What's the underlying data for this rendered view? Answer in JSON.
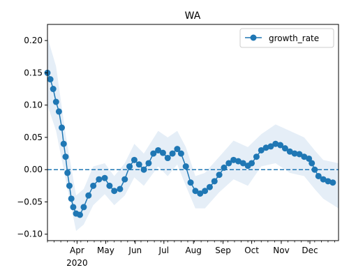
{
  "chart_data": {
    "type": "line",
    "title": "WA",
    "xlabel": "",
    "ylabel": "",
    "xlim": [
      "2020-03-01",
      "2020-12-31"
    ],
    "ylim": [
      -0.11,
      0.225
    ],
    "yticks": [
      -0.1,
      -0.05,
      0.0,
      0.05,
      0.1,
      0.15,
      0.2
    ],
    "ytick_labels": [
      "−0.10",
      "−0.05",
      "0.00",
      "0.05",
      "0.10",
      "0.15",
      "0.20"
    ],
    "xticks": [
      "2020-04-01",
      "2020-05-01",
      "2020-06-01",
      "2020-07-01",
      "2020-08-01",
      "2020-09-01",
      "2020-10-01",
      "2020-11-01",
      "2020-12-01"
    ],
    "xtick_labels": [
      "Apr",
      "May",
      "Jun",
      "Jul",
      "Aug",
      "Sep",
      "Oct",
      "Nov",
      "Dec"
    ],
    "xtick_year_label": "2020",
    "legend_position": "top-right",
    "reference_line": {
      "y": 0.0,
      "style": "dashed"
    },
    "series": [
      {
        "name": "growth_rate",
        "color": "#1f77b4",
        "band_color": "#cfe0f1",
        "points": [
          [
            "2020-03-01",
            0.15
          ],
          [
            "2020-03-04",
            0.14
          ],
          [
            "2020-03-07",
            0.125
          ],
          [
            "2020-03-10",
            0.105
          ],
          [
            "2020-03-13",
            0.09
          ],
          [
            "2020-03-16",
            0.065
          ],
          [
            "2020-03-18",
            0.04
          ],
          [
            "2020-03-20",
            0.02
          ],
          [
            "2020-03-22",
            -0.005
          ],
          [
            "2020-03-24",
            -0.025
          ],
          [
            "2020-03-26",
            -0.045
          ],
          [
            "2020-03-28",
            -0.058
          ],
          [
            "2020-03-31",
            -0.068
          ],
          [
            "2020-04-04",
            -0.07
          ],
          [
            "2020-04-08",
            -0.058
          ],
          [
            "2020-04-13",
            -0.04
          ],
          [
            "2020-04-18",
            -0.025
          ],
          [
            "2020-04-24",
            -0.015
          ],
          [
            "2020-04-30",
            -0.013
          ],
          [
            "2020-05-05",
            -0.025
          ],
          [
            "2020-05-10",
            -0.033
          ],
          [
            "2020-05-16",
            -0.03
          ],
          [
            "2020-05-21",
            -0.015
          ],
          [
            "2020-05-26",
            0.005
          ],
          [
            "2020-05-31",
            0.015
          ],
          [
            "2020-06-05",
            0.008
          ],
          [
            "2020-06-10",
            0.0
          ],
          [
            "2020-06-15",
            0.01
          ],
          [
            "2020-06-20",
            0.025
          ],
          [
            "2020-06-25",
            0.03
          ],
          [
            "2020-06-30",
            0.026
          ],
          [
            "2020-07-05",
            0.018
          ],
          [
            "2020-07-10",
            0.025
          ],
          [
            "2020-07-15",
            0.032
          ],
          [
            "2020-07-19",
            0.025
          ],
          [
            "2020-07-24",
            0.005
          ],
          [
            "2020-07-29",
            -0.02
          ],
          [
            "2020-08-03",
            -0.033
          ],
          [
            "2020-08-08",
            -0.037
          ],
          [
            "2020-08-13",
            -0.033
          ],
          [
            "2020-08-18",
            -0.027
          ],
          [
            "2020-08-23",
            -0.018
          ],
          [
            "2020-08-28",
            -0.008
          ],
          [
            "2020-09-02",
            0.003
          ],
          [
            "2020-09-07",
            0.01
          ],
          [
            "2020-09-12",
            0.015
          ],
          [
            "2020-09-17",
            0.013
          ],
          [
            "2020-09-22",
            0.01
          ],
          [
            "2020-09-27",
            0.006
          ],
          [
            "2020-10-01",
            0.01
          ],
          [
            "2020-10-06",
            0.02
          ],
          [
            "2020-10-11",
            0.03
          ],
          [
            "2020-10-16",
            0.034
          ],
          [
            "2020-10-21",
            0.036
          ],
          [
            "2020-10-26",
            0.04
          ],
          [
            "2020-10-31",
            0.038
          ],
          [
            "2020-11-05",
            0.033
          ],
          [
            "2020-11-10",
            0.028
          ],
          [
            "2020-11-15",
            0.025
          ],
          [
            "2020-11-20",
            0.024
          ],
          [
            "2020-11-25",
            0.02
          ],
          [
            "2020-11-30",
            0.017
          ],
          [
            "2020-12-03",
            0.01
          ],
          [
            "2020-12-06",
            0.0
          ],
          [
            "2020-12-10",
            -0.01
          ],
          [
            "2020-12-15",
            -0.015
          ],
          [
            "2020-12-20",
            -0.018
          ],
          [
            "2020-12-25",
            -0.02
          ]
        ],
        "band_upper": [
          [
            "2020-03-01",
            0.205
          ],
          [
            "2020-03-10",
            0.16
          ],
          [
            "2020-03-20",
            0.055
          ],
          [
            "2020-03-31",
            -0.04
          ],
          [
            "2020-04-08",
            -0.03
          ],
          [
            "2020-04-18",
            0.005
          ],
          [
            "2020-04-30",
            0.01
          ],
          [
            "2020-05-10",
            -0.01
          ],
          [
            "2020-05-21",
            0.01
          ],
          [
            "2020-05-31",
            0.04
          ],
          [
            "2020-06-10",
            0.025
          ],
          [
            "2020-06-25",
            0.06
          ],
          [
            "2020-07-05",
            0.05
          ],
          [
            "2020-07-15",
            0.06
          ],
          [
            "2020-07-24",
            0.035
          ],
          [
            "2020-08-03",
            -0.01
          ],
          [
            "2020-08-13",
            -0.005
          ],
          [
            "2020-08-28",
            0.02
          ],
          [
            "2020-09-12",
            0.045
          ],
          [
            "2020-09-27",
            0.035
          ],
          [
            "2020-10-11",
            0.055
          ],
          [
            "2020-10-26",
            0.07
          ],
          [
            "2020-11-10",
            0.06
          ],
          [
            "2020-11-25",
            0.05
          ],
          [
            "2020-12-06",
            0.03
          ],
          [
            "2020-12-15",
            0.015
          ],
          [
            "2020-12-31",
            0.01
          ]
        ],
        "band_lower": [
          [
            "2020-03-01",
            0.1
          ],
          [
            "2020-03-10",
            0.06
          ],
          [
            "2020-03-20",
            -0.015
          ],
          [
            "2020-03-31",
            -0.095
          ],
          [
            "2020-04-08",
            -0.085
          ],
          [
            "2020-04-18",
            -0.055
          ],
          [
            "2020-04-30",
            -0.038
          ],
          [
            "2020-05-10",
            -0.055
          ],
          [
            "2020-05-21",
            -0.04
          ],
          [
            "2020-05-31",
            -0.012
          ],
          [
            "2020-06-10",
            -0.025
          ],
          [
            "2020-06-25",
            0.005
          ],
          [
            "2020-07-05",
            -0.01
          ],
          [
            "2020-07-15",
            0.008
          ],
          [
            "2020-07-24",
            -0.025
          ],
          [
            "2020-08-03",
            -0.06
          ],
          [
            "2020-08-13",
            -0.06
          ],
          [
            "2020-08-28",
            -0.035
          ],
          [
            "2020-09-12",
            -0.015
          ],
          [
            "2020-09-27",
            -0.025
          ],
          [
            "2020-10-11",
            0.005
          ],
          [
            "2020-10-26",
            0.01
          ],
          [
            "2020-11-10",
            -0.005
          ],
          [
            "2020-11-25",
            -0.01
          ],
          [
            "2020-12-06",
            -0.03
          ],
          [
            "2020-12-15",
            -0.045
          ],
          [
            "2020-12-31",
            -0.06
          ]
        ]
      }
    ]
  }
}
